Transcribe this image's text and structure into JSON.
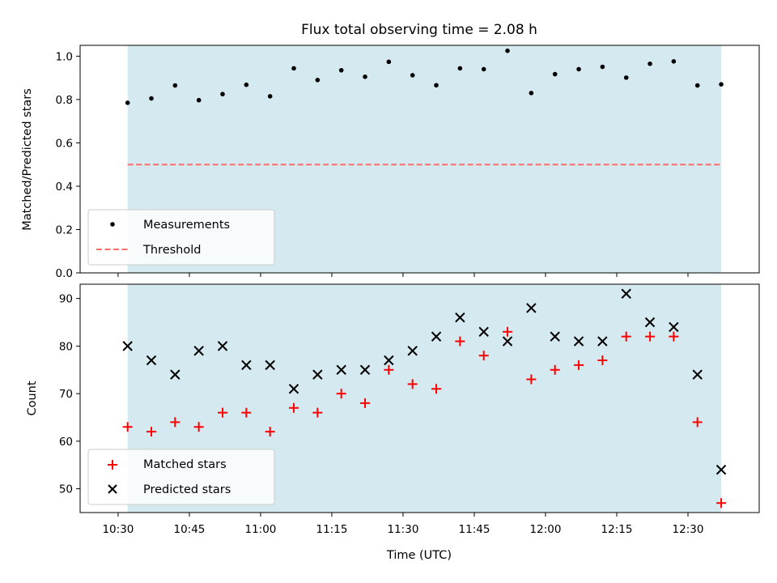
{
  "chart_data": [
    {
      "type": "scatter",
      "panel": "top",
      "title": "Flux total observing time = 2.08 h",
      "ylabel": "Matched/Predicted stars",
      "ylim": [
        0.0,
        1.05
      ],
      "yticks": [
        0.0,
        0.2,
        0.4,
        0.6,
        0.8,
        1.0
      ],
      "ytick_labels": [
        "0.0",
        "0.2",
        "0.4",
        "0.6",
        "0.8",
        "1.0"
      ],
      "xlim": [
        "10:22",
        "12:45"
      ],
      "shaded_span": [
        "10:32",
        "12:37"
      ],
      "shaded_color": "#d4eaf0",
      "legend_position": "lower-left",
      "x": [
        "10:32",
        "10:37",
        "10:42",
        "10:47",
        "10:52",
        "10:57",
        "11:02",
        "11:07",
        "11:12",
        "11:17",
        "11:22",
        "11:27",
        "11:32",
        "11:37",
        "11:42",
        "11:47",
        "11:52",
        "11:57",
        "12:02",
        "12:07",
        "12:12",
        "12:17",
        "12:22",
        "12:27",
        "12:32",
        "12:37"
      ],
      "series": [
        {
          "name": "Measurements",
          "marker": "dot",
          "color": "#000000",
          "values": [
            0.785,
            0.805,
            0.865,
            0.797,
            0.825,
            0.868,
            0.815,
            0.944,
            0.89,
            0.935,
            0.905,
            0.974,
            0.912,
            0.866,
            0.944,
            0.94,
            1.025,
            0.83,
            0.917,
            0.94,
            0.951,
            0.901,
            0.965,
            0.976,
            0.865,
            0.87
          ]
        },
        {
          "name": "Threshold",
          "style": "dashed",
          "color": "#ff6b6b",
          "value": 0.5
        }
      ]
    },
    {
      "type": "scatter",
      "panel": "bottom",
      "ylabel": "Count",
      "xlabel": "Time (UTC)",
      "ylim": [
        45,
        93
      ],
      "yticks": [
        50,
        60,
        70,
        80,
        90
      ],
      "ytick_labels": [
        "50",
        "60",
        "70",
        "80",
        "90"
      ],
      "xlim": [
        "10:22",
        "12:45"
      ],
      "xticks": [
        "10:30",
        "10:45",
        "11:00",
        "11:15",
        "11:30",
        "11:45",
        "12:00",
        "12:15",
        "12:30"
      ],
      "xtick_labels": [
        "10:30",
        "10:45",
        "11:00",
        "11:15",
        "11:30",
        "11:45",
        "12:00",
        "12:15",
        "12:30"
      ],
      "shaded_span": [
        "10:32",
        "12:37"
      ],
      "shaded_color": "#d4eaf0",
      "legend_position": "lower-left",
      "x": [
        "10:32",
        "10:37",
        "10:42",
        "10:47",
        "10:52",
        "10:57",
        "11:02",
        "11:07",
        "11:12",
        "11:17",
        "11:22",
        "11:27",
        "11:32",
        "11:37",
        "11:42",
        "11:47",
        "11:52",
        "11:57",
        "12:02",
        "12:07",
        "12:12",
        "12:17",
        "12:22",
        "12:27",
        "12:32",
        "12:37"
      ],
      "series": [
        {
          "name": "Matched stars",
          "marker": "plus",
          "color": "#ff0000",
          "values": [
            63,
            62,
            64,
            63,
            66,
            66,
            62,
            67,
            66,
            70,
            68,
            75,
            72,
            71,
            81,
            78,
            83,
            73,
            75,
            76,
            77,
            82,
            82,
            82,
            64,
            47
          ]
        },
        {
          "name": "Predicted stars",
          "marker": "x",
          "color": "#000000",
          "values": [
            80,
            77,
            74,
            79,
            80,
            76,
            76,
            71,
            74,
            75,
            75,
            77,
            79,
            82,
            86,
            83,
            81,
            88,
            82,
            81,
            81,
            91,
            85,
            84,
            74,
            54
          ]
        }
      ]
    }
  ]
}
